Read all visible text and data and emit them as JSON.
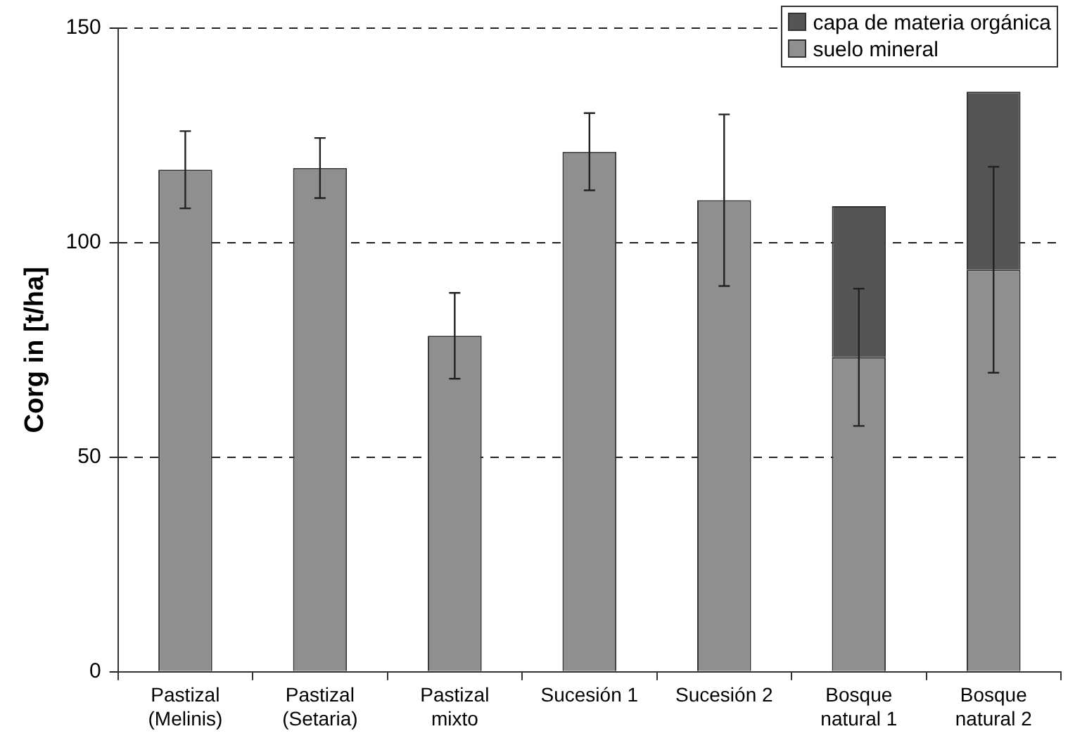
{
  "chart_data": {
    "type": "bar",
    "ylabel": "Corg in [t/ha]",
    "stacked": true,
    "categories": [
      "Pastizal\n(Melinis)",
      "Pastizal\n(Setaria)",
      "Pastizal\nmixto",
      "Sucesión 1",
      "Sucesión 2",
      "Bosque\nnatural 1",
      "Bosque\nnatural 2"
    ],
    "series": [
      {
        "name": "suelo mineral",
        "color": "#8f8f8f",
        "values": [
          117,
          117.4,
          78.3,
          121.2,
          109.9,
          73.3,
          93.7
        ],
        "errors": [
          9,
          7,
          10,
          9,
          20,
          16,
          24
        ]
      },
      {
        "name": "capa de materia orgánica",
        "color": "#555555",
        "values": [
          null,
          null,
          null,
          null,
          null,
          35.2,
          41.5
        ]
      }
    ],
    "ylim": [
      0,
      150
    ],
    "yticks": [
      0,
      50,
      100,
      150
    ],
    "grid": "y",
    "legend": "top right"
  }
}
